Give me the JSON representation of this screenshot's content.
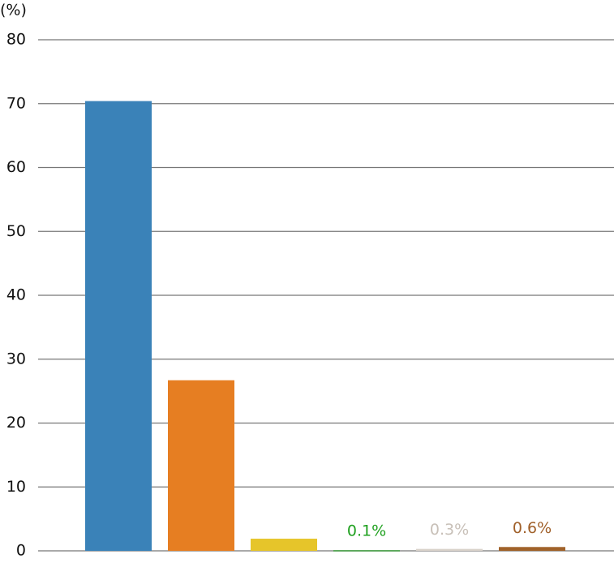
{
  "chart_data": {
    "type": "bar",
    "y_unit_label": "(%)",
    "categories": [
      null,
      null,
      null,
      null,
      null,
      null
    ],
    "values": [
      70.4,
      26.7,
      1.9,
      0.1,
      0.3,
      0.6
    ],
    "value_labels": [
      null,
      null,
      null,
      "0.1%",
      "0.3%",
      "0.6%"
    ],
    "colors": [
      "#3a82b8",
      "#e67e22",
      "#e6c52a",
      "#3a9a3a",
      "#d9d2ca",
      "#a0622a"
    ],
    "label_colors": [
      null,
      null,
      null,
      "#1fa01f",
      "#c8c0b8",
      "#a0602a"
    ],
    "ylim": [
      0,
      80
    ],
    "yticks": [
      0,
      10,
      20,
      30,
      40,
      50,
      60,
      70,
      80
    ],
    "grid": true
  }
}
